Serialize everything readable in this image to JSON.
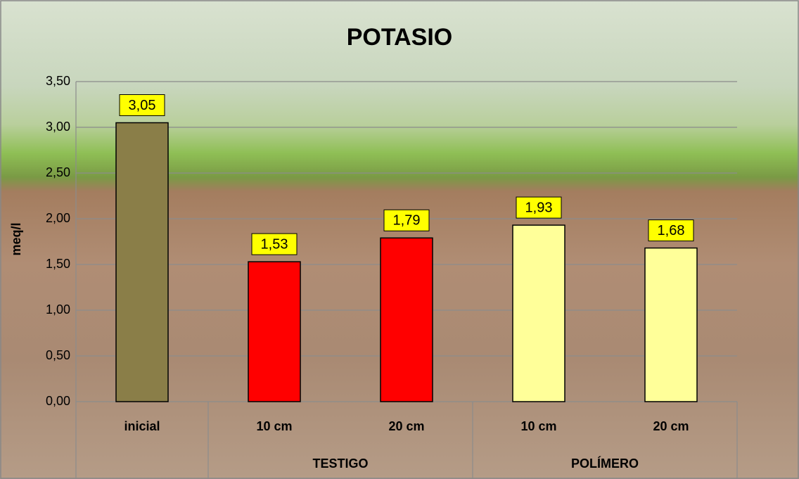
{
  "chart_data": {
    "type": "bar",
    "title": "POTASIO",
    "ylabel": "meq/l",
    "categories": [
      "inicial",
      "10 cm",
      "20 cm",
      "10 cm",
      "20 cm"
    ],
    "groups": [
      null,
      "TESTIGO",
      "TESTIGO",
      "POLÍMERO",
      "POLÍMERO"
    ],
    "values": [
      3.05,
      1.53,
      1.79,
      1.93,
      1.68
    ],
    "value_labels": [
      "3,05",
      "1,53",
      "1,79",
      "1,93",
      "1,68"
    ],
    "colors": [
      "#8a7e48",
      "#ff0000",
      "#ff0000",
      "#ffff99",
      "#ffff99"
    ],
    "label_box_color": "#ffff00",
    "ylim": [
      0,
      3.5
    ],
    "yticks": [
      {
        "value": 0,
        "label": "0,00"
      },
      {
        "value": 0.5,
        "label": "0,50"
      },
      {
        "value": 1,
        "label": "1,00"
      },
      {
        "value": 1.5,
        "label": "1,50"
      },
      {
        "value": 2,
        "label": "2,00"
      },
      {
        "value": 2.5,
        "label": "2,50"
      },
      {
        "value": 3,
        "label": "3,00"
      },
      {
        "value": 3.5,
        "label": "3,50"
      }
    ],
    "grid": true
  }
}
